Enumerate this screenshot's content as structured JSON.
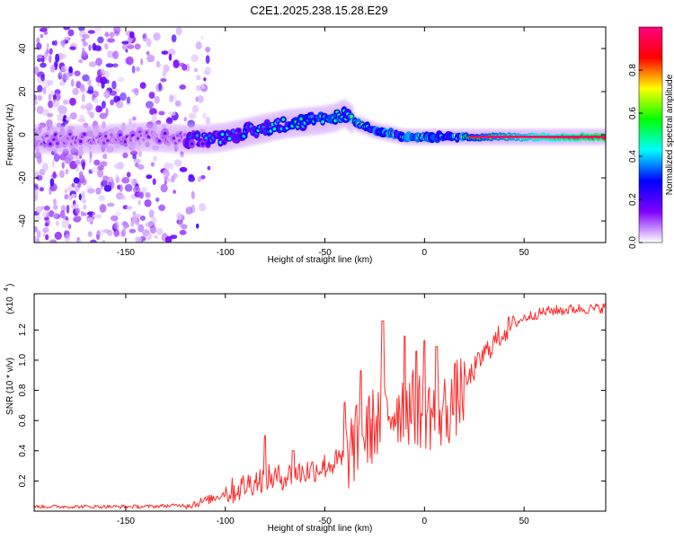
{
  "chart_data": [
    {
      "type": "heatmap",
      "title": "C2E1.2025.238.15.28.E29",
      "xlabel": "Height of straight line (km)",
      "ylabel": "Frequency (Hz)",
      "xlim": [
        -196,
        91
      ],
      "ylim": [
        -50,
        50
      ],
      "xticks": [
        -150,
        -100,
        -50,
        0,
        50
      ],
      "yticks": [
        -40,
        -20,
        0,
        20,
        40
      ],
      "xtick_labels": [
        "-150",
        "-100",
        "-50",
        "0",
        "50"
      ],
      "ytick_labels": [
        "-40",
        "-20",
        "0",
        "20",
        "40"
      ],
      "ridge": {
        "name": "dominant frequency track",
        "x": [
          -190,
          -160,
          -140,
          -120,
          -110,
          -100,
          -90,
          -80,
          -70,
          -60,
          -50,
          -45,
          -40,
          -36,
          -34,
          -30,
          -25,
          -20,
          -15,
          -10,
          -5,
          0,
          10,
          20,
          30,
          50,
          70,
          90
        ],
        "y": [
          -2,
          -2,
          -1,
          -2,
          -2,
          -1,
          1,
          3,
          5,
          6,
          7,
          8,
          10,
          7,
          5,
          4,
          2,
          1,
          0,
          -1,
          -1,
          -1,
          -1,
          -1,
          -1,
          -1,
          -1,
          -1
        ]
      },
      "colorbar": {
        "label": "Normalized spectral amplitude",
        "range": [
          0.0,
          1.0
        ],
        "ticks": [
          0.0,
          0.2,
          0.4,
          0.6,
          0.8
        ],
        "tick_labels": [
          "0.0",
          "0.2",
          "0.4",
          "0.6",
          "0.8"
        ],
        "colors": [
          "#ffffff",
          "#8000ff",
          "#0000ff",
          "#00ffff",
          "#00ff00",
          "#ffff00",
          "#ff0000",
          "#ff0080"
        ]
      }
    },
    {
      "type": "line",
      "title": "",
      "xlabel": "Height of straight line (km)",
      "ylabel": "SNR (10 * v/v)",
      "scale_note": "(x10",
      "scale_exp": "4",
      "xlim": [
        -196,
        91
      ],
      "ylim": [
        0,
        14400
      ],
      "xticks": [
        -150,
        -100,
        -50,
        0,
        50
      ],
      "yticks": [
        2000,
        4000,
        6000,
        8000,
        10000,
        12000
      ],
      "xtick_labels": [
        "-150",
        "-100",
        "-50",
        "0",
        "50"
      ],
      "ytick_labels": [
        "0.2",
        "0.4",
        "0.6",
        "0.8",
        "1.0",
        "1.2"
      ],
      "series": [
        {
          "name": "SNR",
          "color": "#ff2a2a",
          "x": [
            -196,
            -180,
            -160,
            -140,
            -130,
            -120,
            -115,
            -110,
            -105,
            -100,
            -95,
            -90,
            -85,
            -80,
            -75,
            -70,
            -65,
            -60,
            -55,
            -50,
            -45,
            -40,
            -35,
            -30,
            -25,
            -20,
            -15,
            -10,
            -5,
            0,
            5,
            10,
            15,
            20,
            25,
            30,
            35,
            40,
            45,
            50,
            55,
            60,
            65,
            70,
            75,
            80,
            85,
            91
          ],
          "y": [
            300,
            300,
            300,
            300,
            350,
            400,
            500,
            700,
            900,
            1200,
            1400,
            1700,
            2000,
            2200,
            2200,
            2300,
            2500,
            2600,
            2800,
            3000,
            3200,
            3500,
            4400,
            5000,
            5800,
            6300,
            6800,
            7000,
            6800,
            6600,
            6500,
            6600,
            7300,
            8200,
            9400,
            10400,
            11200,
            11900,
            12400,
            12800,
            13000,
            13200,
            13300,
            13300,
            13400,
            13400,
            13400,
            13500
          ]
        }
      ],
      "spikes": [
        {
          "x": -80,
          "y": 5000
        },
        {
          "x": -66,
          "y": 4000
        },
        {
          "x": -40,
          "y": 7200
        },
        {
          "x": -32,
          "y": 9300
        },
        {
          "x": -21,
          "y": 12600
        },
        {
          "x": -10,
          "y": 11600
        },
        {
          "x": -4,
          "y": 10600
        },
        {
          "x": 0,
          "y": 11300
        },
        {
          "x": 6,
          "y": 10900
        }
      ]
    }
  ]
}
